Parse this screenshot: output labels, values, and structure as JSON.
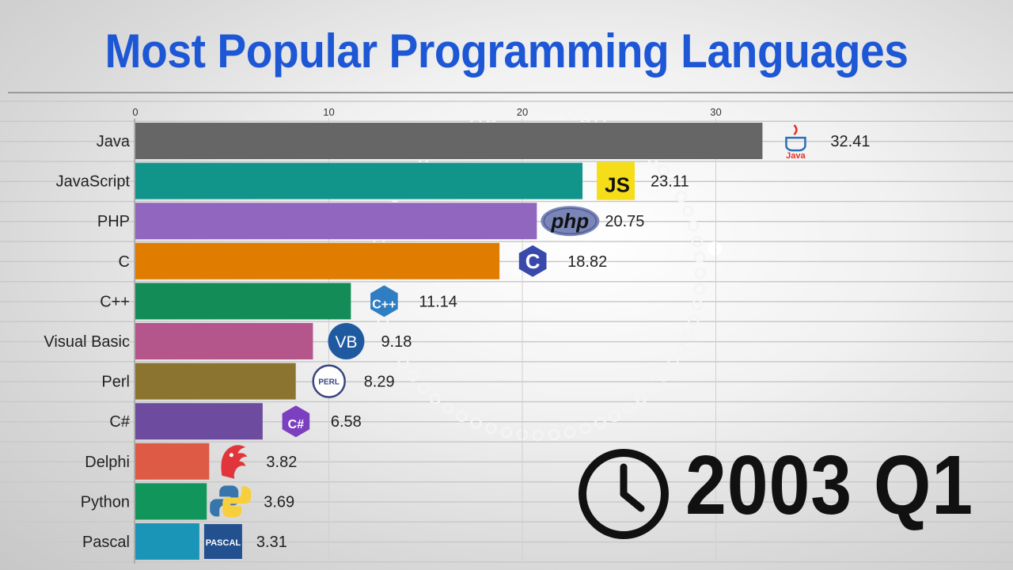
{
  "title": "Most Popular Programming Languages",
  "period": "2003 Q1",
  "chart_data": {
    "type": "bar",
    "orientation": "horizontal",
    "title": "Most Popular Programming Languages",
    "xlim": [
      0,
      34
    ],
    "xticks": [
      0,
      10,
      20,
      30
    ],
    "grid": true,
    "categories": [
      "Java",
      "JavaScript",
      "PHP",
      "C",
      "C++",
      "Visual Basic",
      "Perl",
      "C#",
      "Delphi",
      "Python",
      "Pascal"
    ],
    "values": [
      32.41,
      23.11,
      20.75,
      18.82,
      11.14,
      9.18,
      8.29,
      6.58,
      3.82,
      3.69,
      3.31
    ],
    "value_labels": [
      "32.41",
      "23.11",
      "20.75",
      "18.82",
      "11.14",
      "9.18",
      "8.29",
      "6.58",
      "3.82",
      "3.69",
      "3.31"
    ],
    "colors": [
      "#666666",
      "#11958a",
      "#9166bf",
      "#e07c00",
      "#138c58",
      "#b4568c",
      "#8b7430",
      "#6d4ca0",
      "#de5a45",
      "#11955a",
      "#1a95b8"
    ],
    "icons": [
      "java-logo-icon",
      "javascript-logo-icon",
      "php-logo-icon",
      "c-logo-icon",
      "cpp-logo-icon",
      "visual-basic-logo-icon",
      "perl-logo-icon",
      "csharp-logo-icon",
      "delphi-logo-icon",
      "python-logo-icon",
      "pascal-logo-icon"
    ],
    "icon_text": [
      "Java",
      "JS",
      "php",
      "C",
      "C++",
      "VB",
      "PERL",
      "C#",
      "",
      "",
      "PASCAL"
    ]
  }
}
